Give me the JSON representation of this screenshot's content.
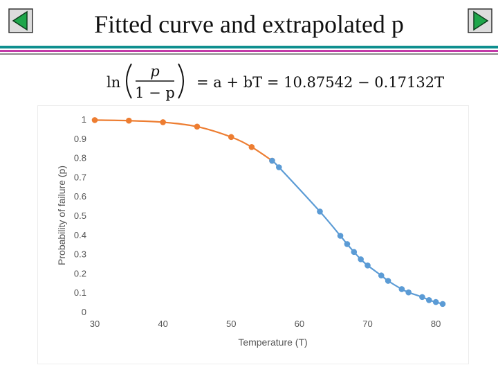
{
  "slide": {
    "title": "Fitted curve and extrapolated p"
  },
  "nav": {
    "prev_icon": "previous-slide-icon",
    "next_icon": "next-slide-icon"
  },
  "colors": {
    "nav_fill": "#1ea64a",
    "nav_border": "#0d3d1c",
    "rule_teal": "#0e8f8f",
    "rule_magenta": "#c23aa8",
    "rule_gray": "#8a8a8a",
    "series_orange": "#ed7d31",
    "series_blue": "#5b9bd5"
  },
  "formula": {
    "ln": "ln",
    "numerator": "p",
    "denominator": "1 − p",
    "rhs": "= a + bT = 10.87542 − 0.17132T"
  },
  "chart_data": {
    "type": "line",
    "xlabel": "Temperature (T)",
    "ylabel": "Probability of failure (p)",
    "xlim": [
      30,
      81
    ],
    "ylim": [
      0,
      1
    ],
    "xticks": [
      30,
      40,
      50,
      60,
      70,
      80
    ],
    "yticks": [
      0,
      0.1,
      0.2,
      0.3,
      0.4,
      0.5,
      0.6,
      0.7,
      0.8,
      0.9,
      1
    ],
    "grid": false,
    "legend": "none",
    "series": [
      {
        "color": "#ed7d31",
        "x": [
          30,
          35,
          40,
          45,
          50,
          53,
          56
        ],
        "y": [
          0.995,
          0.992,
          0.984,
          0.961,
          0.907,
          0.855,
          0.784
        ]
      },
      {
        "color": "#5b9bd5",
        "x": [
          56,
          57,
          63,
          66,
          67,
          68,
          69,
          70,
          72,
          73,
          75,
          76,
          78,
          79,
          80,
          81
        ],
        "y": [
          0.784,
          0.75,
          0.52,
          0.394,
          0.351,
          0.31,
          0.272,
          0.24,
          0.188,
          0.16,
          0.117,
          0.1,
          0.076,
          0.06,
          0.05,
          0.04
        ]
      }
    ]
  }
}
